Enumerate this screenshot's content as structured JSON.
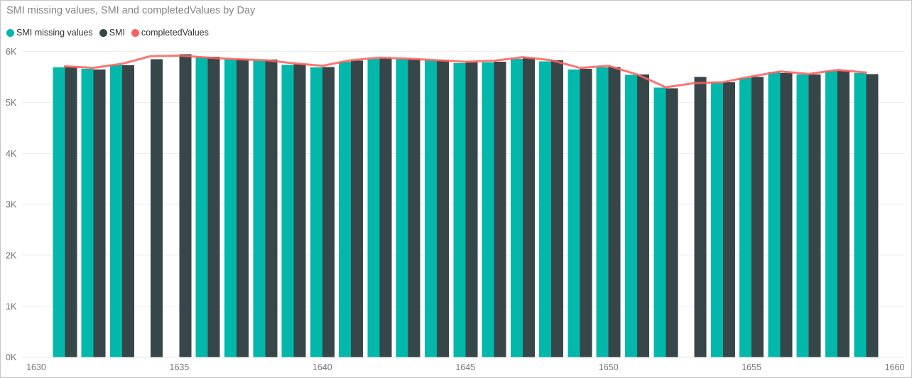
{
  "chart_data": {
    "type": "combo-clustered-column-and-line",
    "title": "SMI missing values, SMI and completedValues by Day",
    "x_field": "Day",
    "x": [
      1631,
      1632,
      1633,
      1634,
      1635,
      1636,
      1637,
      1638,
      1639,
      1640,
      1641,
      1642,
      1643,
      1644,
      1645,
      1646,
      1647,
      1648,
      1649,
      1650,
      1651,
      1652,
      1653,
      1654,
      1655,
      1656,
      1657,
      1658,
      1659
    ],
    "series": [
      {
        "name": "SMI missing values",
        "type": "bar",
        "color": "#01B8AA",
        "values": [
          5690,
          5660,
          5740,
          null,
          null,
          5890,
          5850,
          5820,
          5740,
          5690,
          5800,
          5860,
          5860,
          5830,
          5770,
          5790,
          5860,
          5810,
          5650,
          5690,
          5540,
          5290,
          null,
          5390,
          5480,
          5600,
          5550,
          5620,
          5580
        ]
      },
      {
        "name": "SMI",
        "type": "bar",
        "color": "#374649",
        "values": [
          5700,
          5650,
          5730,
          5850,
          5950,
          5900,
          5860,
          5840,
          5750,
          5700,
          5820,
          5870,
          5850,
          5830,
          5790,
          5800,
          5880,
          5830,
          5660,
          5700,
          5550,
          5280,
          5500,
          5400,
          5500,
          5580,
          5550,
          5630,
          5560
        ]
      },
      {
        "name": "completedValues",
        "type": "line",
        "color": "#FD625E",
        "values": [
          5710,
          5680,
          5760,
          5910,
          5920,
          5880,
          5850,
          5830,
          5770,
          5720,
          5830,
          5880,
          5860,
          5830,
          5800,
          5820,
          5890,
          5830,
          5680,
          5720,
          5550,
          5300,
          5380,
          5400,
          5510,
          5610,
          5560,
          5640,
          5590
        ]
      }
    ],
    "x_ticks": [
      "1630",
      "1635",
      "1640",
      "1645",
      "1650",
      "1655",
      "1660"
    ],
    "y_ticks": [
      "0K",
      "1K",
      "2K",
      "3K",
      "4K",
      "5K",
      "6K"
    ],
    "xlim": [
      1630,
      1660
    ],
    "ylim": [
      0,
      6000
    ],
    "grid": "horizontal",
    "legend_position": "top-left"
  },
  "colors": {
    "grid_line": "#EDEDED",
    "zero_line": "#E1E1E1",
    "axis_label": "#777777",
    "title_text": "#858585",
    "legend_text": "#333333",
    "border": "#C6C6C6"
  }
}
